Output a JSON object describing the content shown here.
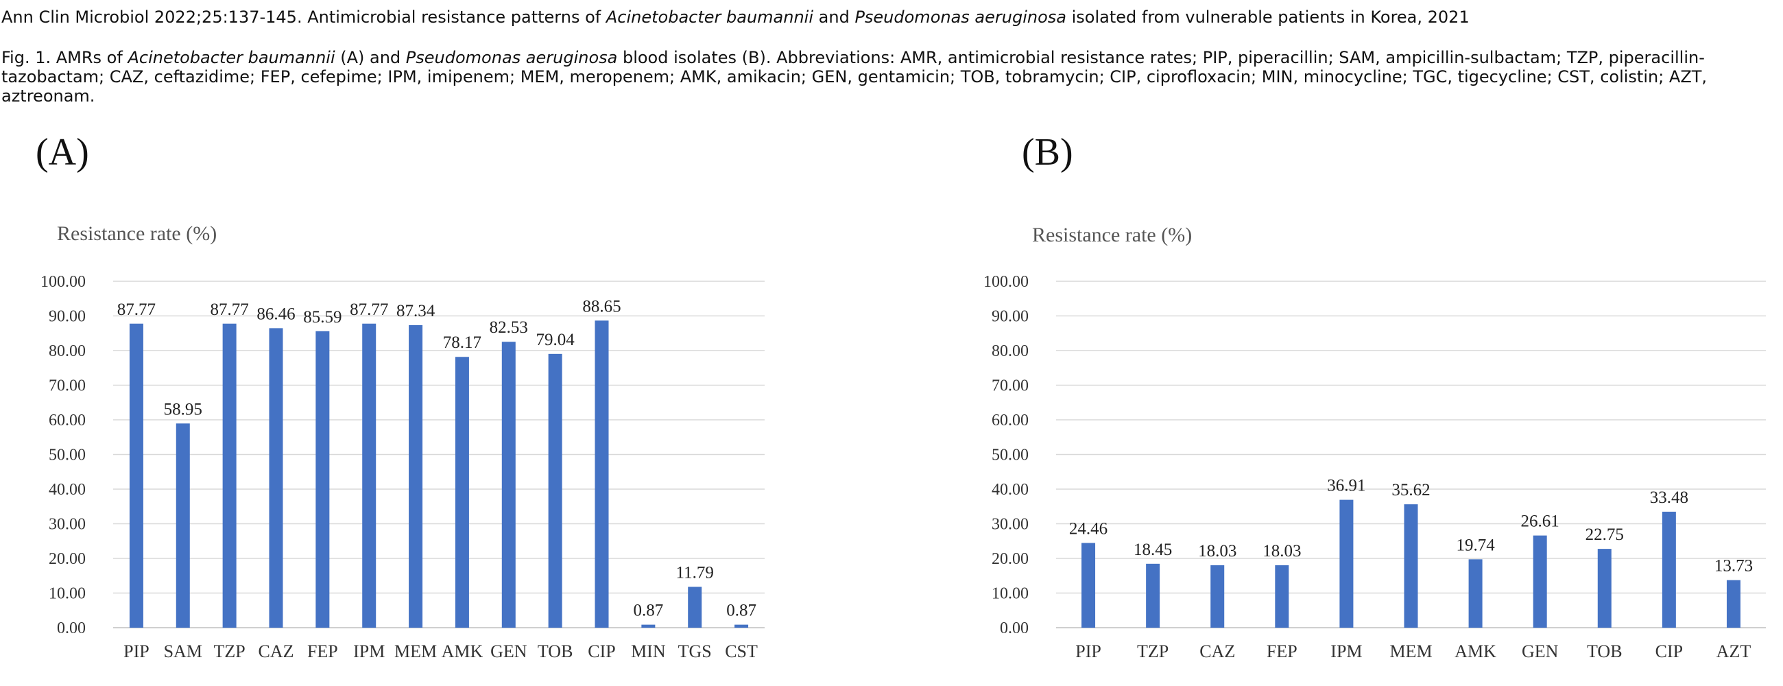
{
  "header": {
    "citation": {
      "prefix": "Ann Clin Microbiol 2022;25:137-145. Antimicrobial resistance patterns of ",
      "org1": "Acinetobacter baumannii",
      "mid": " and ",
      "org2": "Pseudomonas aeruginosa",
      "suffix": " isolated from vulnerable patients in Korea, 2021"
    },
    "caption": {
      "prefix": "Fig. 1. AMRs of ",
      "org1": "Acinetobacter baumannii",
      "mid": " (A) and ",
      "org2": "Pseudomonas aeruginosa",
      "suffix": " blood isolates (B). Abbreviations: AMR, antimicrobial resistance rates; PIP, piperacillin; SAM, ampicillin-sulbactam; TZP, piperacillin-tazobactam; CAZ, ceftazidime; FEP, cefepime; IPM, imipenem; MEM, meropenem; AMK, amikacin; GEN, gentamicin; TOB, tobramycin; CIP, ciprofloxacin; MIN, minocycline; TGC, tigecycline; CST, colistin; AZT, aztreonam."
    }
  },
  "bar_color": "#4472c4",
  "chart_data": [
    {
      "type": "bar",
      "panel": "(A)",
      "ylabel": "Resistance rate (%)",
      "ylim": [
        0,
        100
      ],
      "yticks": [
        "0.00",
        "10.00",
        "20.00",
        "30.00",
        "40.00",
        "50.00",
        "60.00",
        "70.00",
        "80.00",
        "90.00",
        "100.00"
      ],
      "grid": true,
      "categories": [
        "PIP",
        "SAM",
        "TZP",
        "CAZ",
        "FEP",
        "IPM",
        "MEM",
        "AMK",
        "GEN",
        "TOB",
        "CIP",
        "MIN",
        "TGS",
        "CST"
      ],
      "values": [
        87.77,
        58.95,
        87.77,
        86.46,
        85.59,
        87.77,
        87.34,
        78.17,
        82.53,
        79.04,
        88.65,
        0.87,
        11.79,
        0.87
      ],
      "labels": [
        "87.77",
        "58.95",
        "87.77",
        "86.46",
        "85.59",
        "87.77",
        "87.34",
        "78.17",
        "82.53",
        "79.04",
        "88.65",
        "0.87",
        "11.79",
        "0.87"
      ]
    },
    {
      "type": "bar",
      "panel": "(B)",
      "ylabel": "Resistance rate (%)",
      "ylim": [
        0,
        100
      ],
      "yticks": [
        "0.00",
        "10.00",
        "20.00",
        "30.00",
        "40.00",
        "50.00",
        "60.00",
        "70.00",
        "80.00",
        "90.00",
        "100.00"
      ],
      "grid": true,
      "categories": [
        "PIP",
        "TZP",
        "CAZ",
        "FEP",
        "IPM",
        "MEM",
        "AMK",
        "GEN",
        "TOB",
        "CIP",
        "AZT"
      ],
      "values": [
        24.46,
        18.45,
        18.03,
        18.03,
        36.91,
        35.62,
        19.74,
        26.61,
        22.75,
        33.48,
        13.73
      ],
      "labels": [
        "24.46",
        "18.45",
        "18.03",
        "18.03",
        "36.91",
        "35.62",
        "19.74",
        "26.61",
        "22.75",
        "33.48",
        "13.73"
      ]
    }
  ]
}
